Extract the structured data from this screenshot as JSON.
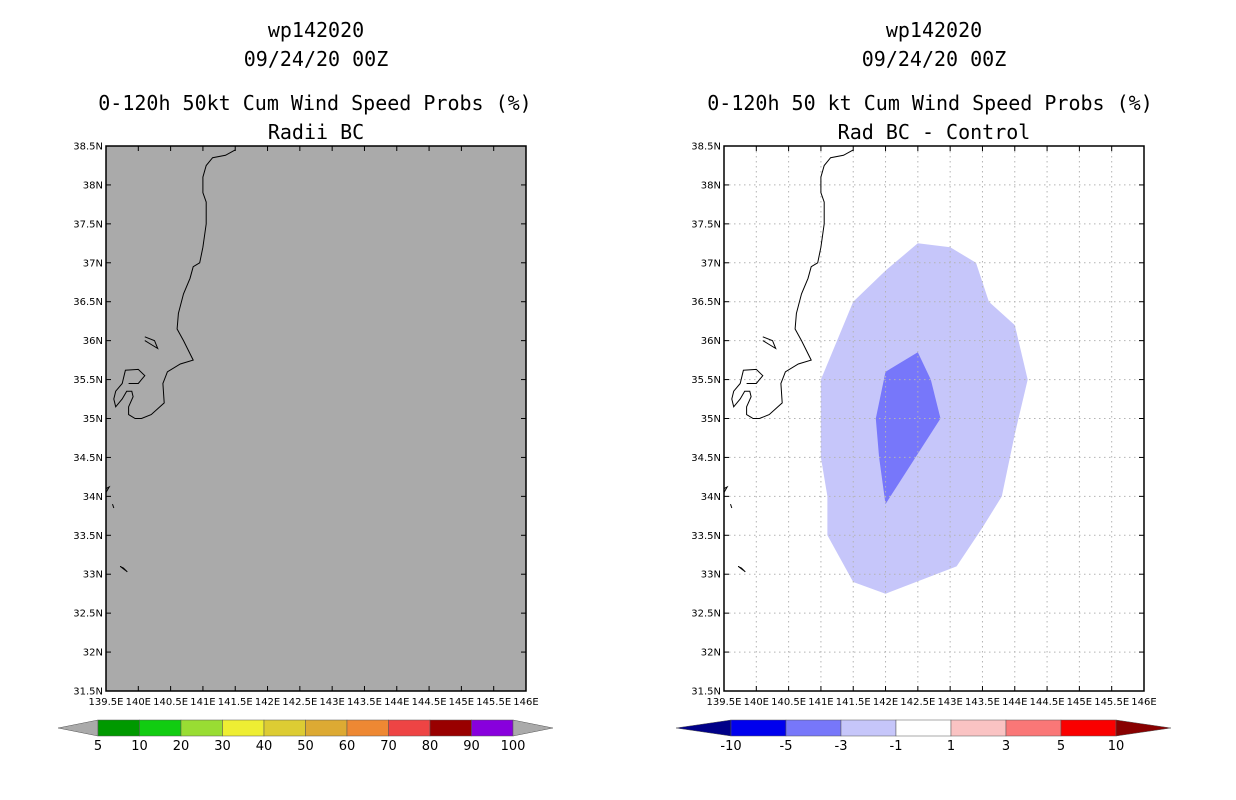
{
  "chart_data": [
    {
      "type": "map",
      "title_lines": [
        "wp142020",
        "09/24/20 00Z",
        "0-120h 50kt Cum Wind Speed Probs (%)",
        "Radii BC"
      ],
      "xlim": [
        139.5,
        146
      ],
      "ylim": [
        31.5,
        38.5
      ],
      "x_tick_labels": [
        "139.5E",
        "140E",
        "140.5E",
        "141E",
        "141.5E",
        "142E",
        "142.5E",
        "143E",
        "143.5E",
        "144E",
        "144.5E",
        "145E",
        "145.5E",
        "146E"
      ],
      "y_tick_labels": [
        "31.5N",
        "32N",
        "32.5N",
        "33N",
        "33.5N",
        "34N",
        "34.5N",
        "35N",
        "35.5N",
        "36N",
        "36.5N",
        "37N",
        "37.5N",
        "38N",
        "38.5N"
      ],
      "background_color": "#aaaaaa",
      "colorbar": {
        "labels": [
          "5",
          "10",
          "20",
          "30",
          "40",
          "50",
          "60",
          "70",
          "80",
          "90",
          "100"
        ],
        "colors": [
          "#009900",
          "#11cc11",
          "#99dd33",
          "#eeee33",
          "#ddcc33",
          "#ddaa33",
          "#ee8833",
          "#ee4444",
          "#990000",
          "#8800dd"
        ],
        "end_low_color": "#aaaaaa",
        "end_high_color": "#aaaaaa"
      }
    },
    {
      "type": "map",
      "title_lines": [
        "wp142020",
        "09/24/20 00Z",
        "0-120h 50 kt Cum Wind Speed Probs (%)",
        "Rad BC - Control"
      ],
      "xlim": [
        139.5,
        146
      ],
      "ylim": [
        31.5,
        38.5
      ],
      "x_tick_labels": [
        "139.5E",
        "140E",
        "140.5E",
        "141E",
        "141.5E",
        "142E",
        "142.5E",
        "143E",
        "143.5E",
        "144E",
        "144.5E",
        "145E",
        "145.5E",
        "146E"
      ],
      "y_tick_labels": [
        "31.5N",
        "32N",
        "32.5N",
        "33N",
        "33.5N",
        "34N",
        "34.5N",
        "35N",
        "35.5N",
        "36N",
        "36.5N",
        "37N",
        "37.5N",
        "38N",
        "38.5N"
      ],
      "background_color": "#ffffff",
      "contour_regions": [
        {
          "level": "-3 to -1",
          "color": "#c6c6fa",
          "lonlat": [
            [
              141.0,
              35.5
            ],
            [
              141.5,
              36.5
            ],
            [
              142.0,
              36.9
            ],
            [
              142.5,
              37.25
            ],
            [
              143.0,
              37.2
            ],
            [
              143.4,
              37.0
            ],
            [
              143.6,
              36.5
            ],
            [
              144.0,
              36.2
            ],
            [
              144.2,
              35.5
            ],
            [
              144.0,
              34.8
            ],
            [
              143.8,
              34.0
            ],
            [
              143.5,
              33.6
            ],
            [
              143.1,
              33.1
            ],
            [
              142.0,
              32.75
            ],
            [
              141.5,
              32.9
            ],
            [
              141.1,
              33.5
            ],
            [
              141.1,
              34.0
            ],
            [
              141.0,
              34.5
            ],
            [
              141.0,
              35.0
            ]
          ]
        },
        {
          "level": "-5 to -3",
          "color": "#7777fa",
          "lonlat": [
            [
              142.0,
              35.6
            ],
            [
              142.5,
              35.85
            ],
            [
              142.7,
              35.5
            ],
            [
              142.85,
              35.0
            ],
            [
              142.0,
              33.9
            ],
            [
              141.9,
              34.5
            ],
            [
              141.85,
              35.0
            ]
          ]
        }
      ],
      "colorbar": {
        "labels": [
          "-10",
          "-5",
          "-3",
          "-1",
          "1",
          "3",
          "5",
          "10"
        ],
        "colors": [
          "#0000ee",
          "#7777fa",
          "#c6c6fa",
          "#ffffff",
          "#fac3c3",
          "#fa7777",
          "#fa0000"
        ],
        "end_low_color": "#000088",
        "end_high_color": "#880000"
      }
    }
  ]
}
